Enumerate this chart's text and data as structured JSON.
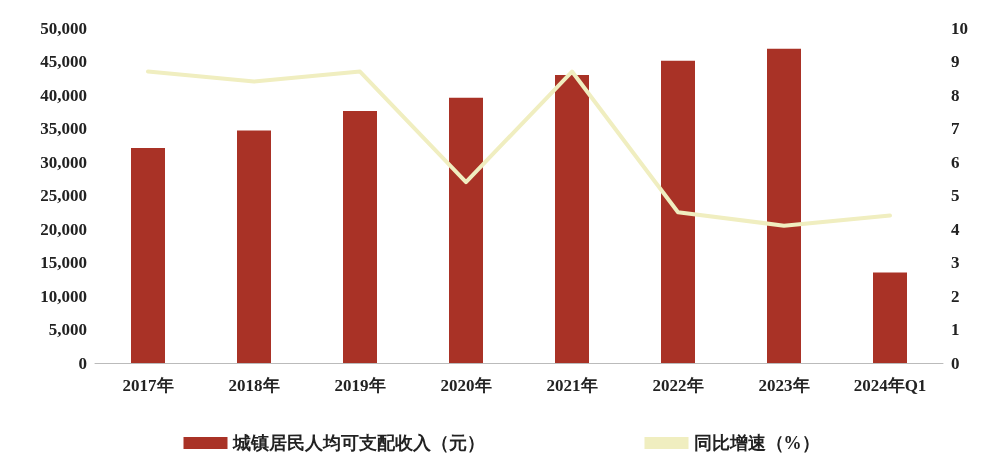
{
  "chart_data": {
    "type": "bar",
    "categories": [
      "2017年",
      "2018年",
      "2019年",
      "2020年",
      "2021年",
      "2022年",
      "2023年",
      "2024年Q1"
    ],
    "series": [
      {
        "name": "城镇居民人均可支配收入（元）",
        "color": "#a93226",
        "values": [
          32100,
          34700,
          37600,
          39600,
          43000,
          45100,
          46900,
          13500
        ]
      },
      {
        "name": "同比增速（%）",
        "type": "line",
        "axis": "y2",
        "color": "#f0eec0",
        "values": [
          8.7,
          8.4,
          8.7,
          5.4,
          8.7,
          4.5,
          4.1,
          4.4
        ]
      }
    ],
    "ylim": [
      0,
      50000
    ],
    "yticks": [
      0,
      {
        "value": 5000,
        "label": "5,000"
      },
      {
        "value": 10000,
        "label": "10,000"
      },
      {
        "value": 15000,
        "label": "15,000"
      },
      {
        "value": 20000,
        "label": "20,000"
      },
      {
        "value": 25000,
        "label": "25,000"
      },
      {
        "value": 30000,
        "label": "30,000"
      },
      {
        "value": 35000,
        "label": "35,000"
      },
      {
        "value": 40000,
        "label": "40,000"
      },
      {
        "value": 45000,
        "label": "45,000"
      },
      {
        "value": 50000,
        "label": "50,000"
      }
    ],
    "y2lim": [
      0,
      10
    ],
    "y2ticks": [
      0,
      1,
      2,
      3,
      4,
      5,
      6,
      7,
      8,
      9,
      10
    ],
    "grid": false,
    "legend": "bottom",
    "marker": "none",
    "line_style": "solid"
  }
}
